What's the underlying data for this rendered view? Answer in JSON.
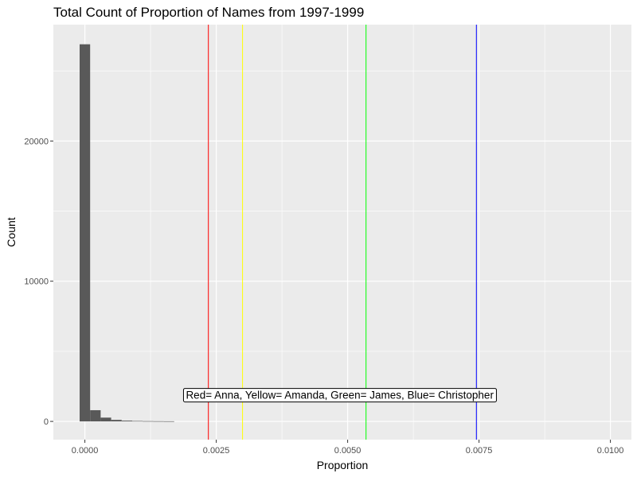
{
  "chart_data": {
    "type": "bar",
    "title": "Total Count of Proportion of Names from 1997-1999",
    "xlabel": "Proportion",
    "ylabel": "Count",
    "xlim": [
      -0.0006,
      0.0104
    ],
    "ylim": [
      -1300,
      28300
    ],
    "x_ticks": [
      0.0,
      0.0025,
      0.005,
      0.0075,
      0.01
    ],
    "x_tick_labels": [
      "0.0000",
      "0.0025",
      "0.0050",
      "0.0075",
      "0.0100"
    ],
    "y_ticks": [
      0,
      10000,
      20000
    ],
    "y_tick_labels": [
      "0",
      "10000",
      "20000"
    ],
    "grid": true,
    "bar_color": "#595959",
    "panel_background": "#ebebeb",
    "bin_width": 0.0002,
    "bins": [
      {
        "x0": -0.0001,
        "x1": 0.0001,
        "count": 26900
      },
      {
        "x0": 0.0001,
        "x1": 0.0003,
        "count": 800
      },
      {
        "x0": 0.0003,
        "x1": 0.0005,
        "count": 270
      },
      {
        "x0": 0.0005,
        "x1": 0.0007,
        "count": 110
      },
      {
        "x0": 0.0007,
        "x1": 0.0009,
        "count": 55
      },
      {
        "x0": 0.0009,
        "x1": 0.0011,
        "count": 30
      },
      {
        "x0": 0.0011,
        "x1": 0.0013,
        "count": 20
      },
      {
        "x0": 0.0013,
        "x1": 0.0015,
        "count": 15
      },
      {
        "x0": 0.0015,
        "x1": 0.0017,
        "count": 10
      }
    ],
    "vlines": [
      {
        "x": 0.00235,
        "color": "#ff0000"
      },
      {
        "x": 0.003,
        "color": "#ffff00"
      },
      {
        "x": 0.00535,
        "color": "#00ff00"
      },
      {
        "x": 0.00745,
        "color": "#0000ff"
      }
    ],
    "annotation": {
      "text": "Red= Anna, Yellow= Amanda, Green= James, Blue= Christopher",
      "x": 0.00485,
      "y": 1900
    }
  }
}
